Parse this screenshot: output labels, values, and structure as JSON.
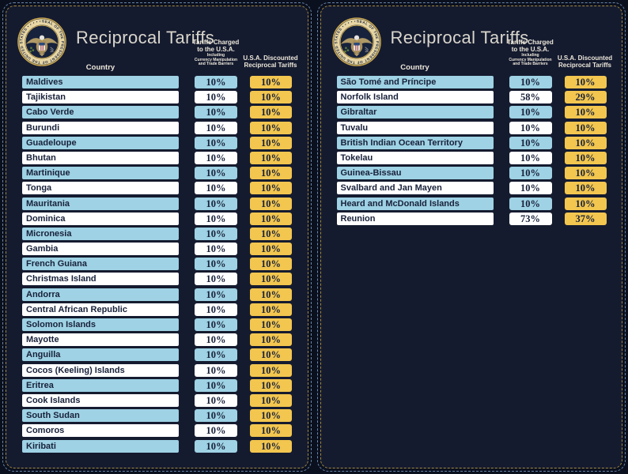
{
  "header": {
    "title": "Reciprocal Tariffs",
    "col_country": "Country",
    "col_charged_1": "Tariffs Charged",
    "col_charged_2": "to the U.S.A.",
    "col_charged_sub1": "Including",
    "col_charged_sub2": "Currency Manipulation",
    "col_charged_sub3": "and Trade Barriers",
    "col_discounted_1": "U.S.A. Discounted",
    "col_discounted_2": "Reciprocal Tariffs"
  },
  "seal": {
    "label": "SEAL OF THE PRESIDENT OF THE UNITED STATES • • • • •"
  },
  "colors": {
    "bg_outer": "#0b101e",
    "bg_panel": "#151b2f",
    "border_blue": "#6886ab",
    "border_gold": "#a28a42",
    "row_blue": "#9ed2e4",
    "row_white": "#ffffff",
    "cell_gold": "#f2c64f",
    "text_dark": "#18213a",
    "text_cream": "#ece7da",
    "title_color": "#d9d6cc"
  },
  "chart_data": [
    {
      "type": "table",
      "title": "Reciprocal Tariffs",
      "columns": [
        "Country",
        "Tariffs Charged to the U.S.A. Including Currency Manipulation and Trade Barriers",
        "U.S.A. Discounted Reciprocal Tariffs"
      ],
      "rows": [
        [
          "Maldives",
          "10%",
          "10%"
        ],
        [
          "Tajikistan",
          "10%",
          "10%"
        ],
        [
          "Cabo Verde",
          "10%",
          "10%"
        ],
        [
          "Burundi",
          "10%",
          "10%"
        ],
        [
          "Guadeloupe",
          "10%",
          "10%"
        ],
        [
          "Bhutan",
          "10%",
          "10%"
        ],
        [
          "Martinique",
          "10%",
          "10%"
        ],
        [
          "Tonga",
          "10%",
          "10%"
        ],
        [
          "Mauritania",
          "10%",
          "10%"
        ],
        [
          "Dominica",
          "10%",
          "10%"
        ],
        [
          "Micronesia",
          "10%",
          "10%"
        ],
        [
          "Gambia",
          "10%",
          "10%"
        ],
        [
          "French Guiana",
          "10%",
          "10%"
        ],
        [
          "Christmas Island",
          "10%",
          "10%"
        ],
        [
          "Andorra",
          "10%",
          "10%"
        ],
        [
          "Central African Republic",
          "10%",
          "10%"
        ],
        [
          "Solomon Islands",
          "10%",
          "10%"
        ],
        [
          "Mayotte",
          "10%",
          "10%"
        ],
        [
          "Anguilla",
          "10%",
          "10%"
        ],
        [
          "Cocos (Keeling) Islands",
          "10%",
          "10%"
        ],
        [
          "Eritrea",
          "10%",
          "10%"
        ],
        [
          "Cook Islands",
          "10%",
          "10%"
        ],
        [
          "South Sudan",
          "10%",
          "10%"
        ],
        [
          "Comoros",
          "10%",
          "10%"
        ],
        [
          "Kiribati",
          "10%",
          "10%"
        ]
      ]
    },
    {
      "type": "table",
      "title": "Reciprocal Tariffs",
      "columns": [
        "Country",
        "Tariffs Charged to the U.S.A. Including Currency Manipulation and Trade Barriers",
        "U.S.A. Discounted Reciprocal Tariffs"
      ],
      "rows": [
        [
          "São Tomé and Príncipe",
          "10%",
          "10%"
        ],
        [
          "Norfolk Island",
          "58%",
          "29%"
        ],
        [
          "Gibraltar",
          "10%",
          "10%"
        ],
        [
          "Tuvalu",
          "10%",
          "10%"
        ],
        [
          "British Indian Ocean Territory",
          "10%",
          "10%"
        ],
        [
          "Tokelau",
          "10%",
          "10%"
        ],
        [
          "Guinea-Bissau",
          "10%",
          "10%"
        ],
        [
          "Svalbard and Jan Mayen",
          "10%",
          "10%"
        ],
        [
          "Heard and McDonald Islands",
          "10%",
          "10%"
        ],
        [
          "Reunion",
          "73%",
          "37%"
        ]
      ]
    }
  ]
}
